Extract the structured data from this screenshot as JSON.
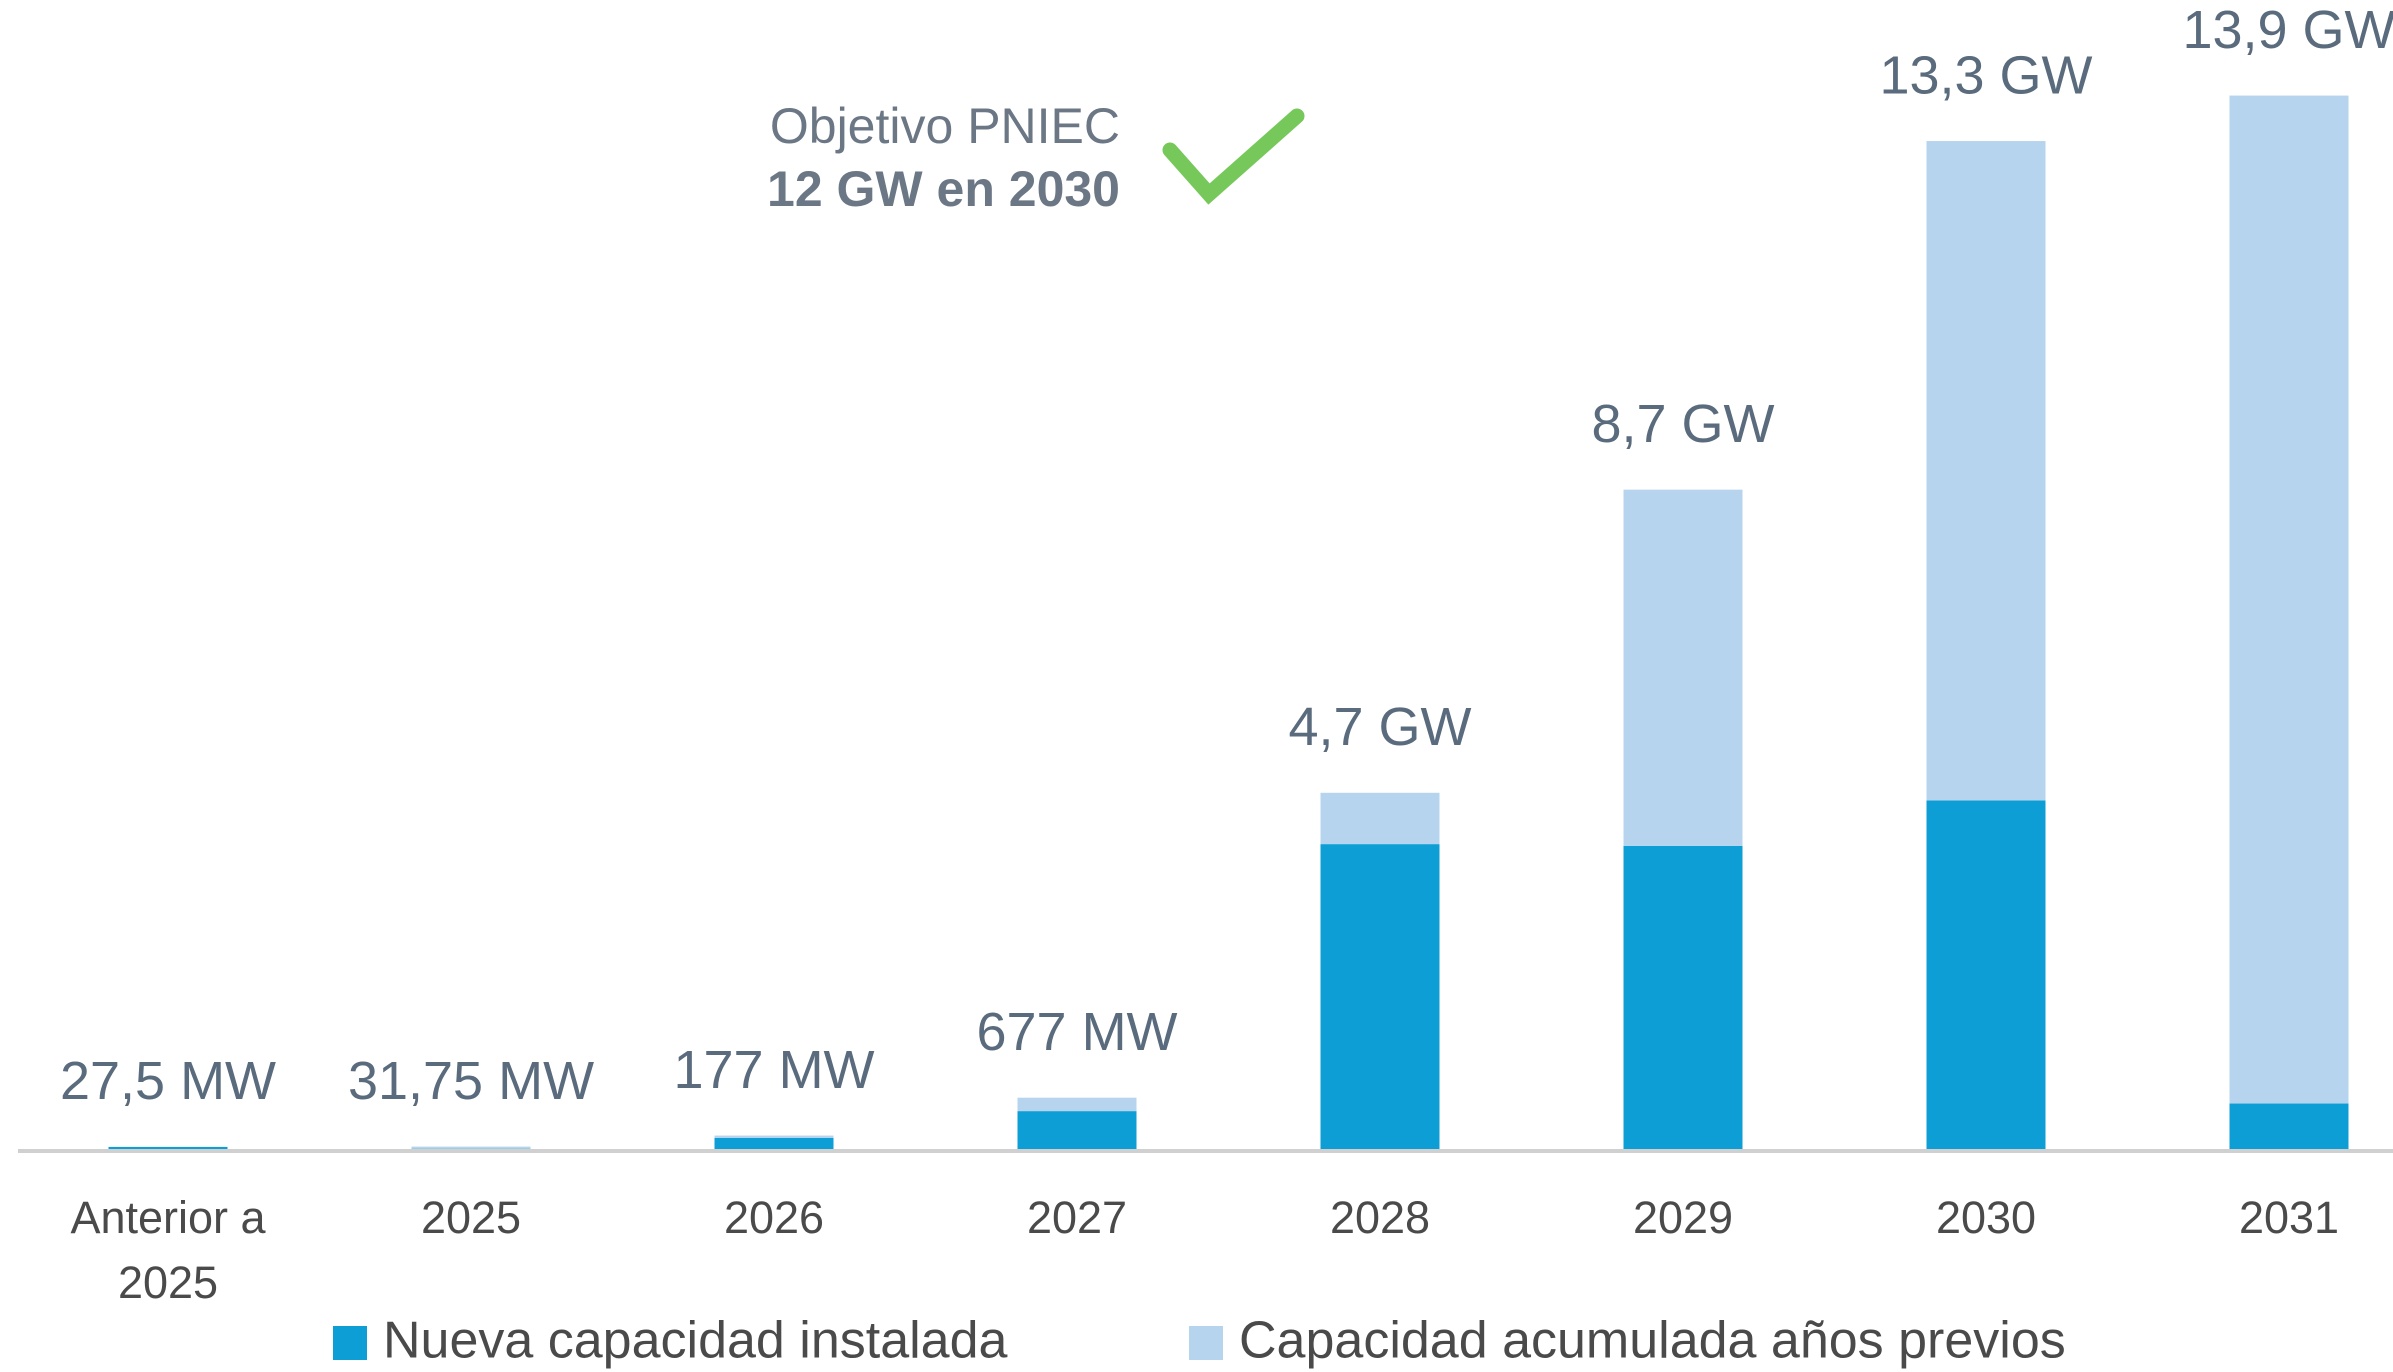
{
  "chart_data": {
    "type": "stacked_bar",
    "annotation": {
      "line1": "Objetivo PNIEC",
      "line2": "12 GW en 2030"
    },
    "categories": [
      "Anterior a 2025",
      "2025",
      "2026",
      "2027",
      "2028",
      "2029",
      "2030",
      "2031"
    ],
    "series": [
      {
        "name": "Nueva capacidad instalada",
        "color": "#0e9ed6",
        "values": [
          27.5,
          4.25,
          145.25,
          500,
          4023,
          4000,
          4600,
          600
        ]
      },
      {
        "name": "Capacidad acumulada años previos",
        "color": "#b6d4ee",
        "values": [
          0,
          27.5,
          31.75,
          177,
          677,
          4700,
          8700,
          13300
        ]
      }
    ],
    "totals": [
      27.5,
      31.75,
      177,
      677,
      4700,
      8700,
      13300,
      13900
    ],
    "value_labels": [
      "27,5 MW",
      "31,75 MW",
      "177 MW",
      "677 MW",
      "4,7 GW",
      "8,7 GW",
      "13,3 GW",
      "13,9 GW"
    ],
    "ylim": [
      0,
      14000
    ]
  }
}
